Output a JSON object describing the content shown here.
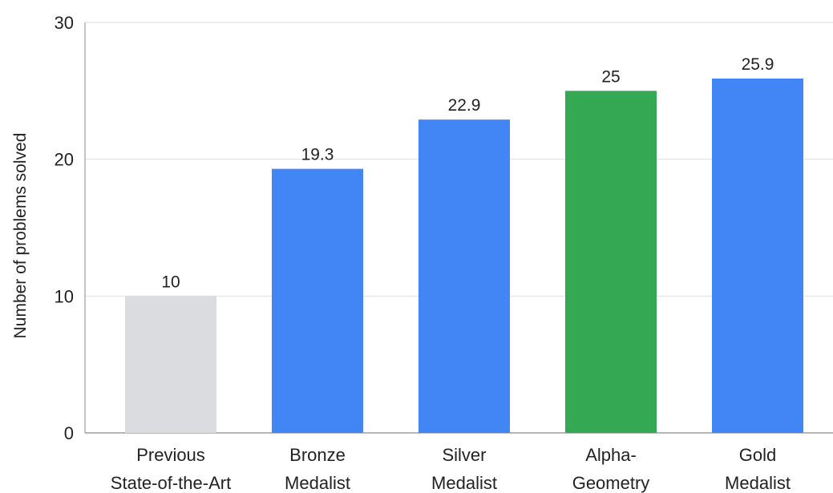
{
  "chart_data": {
    "type": "bar",
    "categories": [
      [
        "Previous",
        "State-of-the-Art"
      ],
      [
        "Bronze",
        "Medalist"
      ],
      [
        "Silver",
        "Medalist"
      ],
      [
        "Alpha-",
        "Geometry"
      ],
      [
        "Gold",
        "Medalist"
      ]
    ],
    "values": [
      10,
      19.3,
      22.9,
      25,
      25.9
    ],
    "value_labels": [
      "10",
      "19.3",
      "22.9",
      "25",
      "25.9"
    ],
    "bar_colors": [
      "#dadcdf",
      "#4285f4",
      "#4285f4",
      "#34a853",
      "#4285f4"
    ],
    "title": "",
    "xlabel": "",
    "ylabel": "Number of problems solved",
    "ylim": [
      0,
      30
    ],
    "yticks": [
      0,
      10,
      20,
      30
    ],
    "grid": true,
    "legend": "none"
  }
}
